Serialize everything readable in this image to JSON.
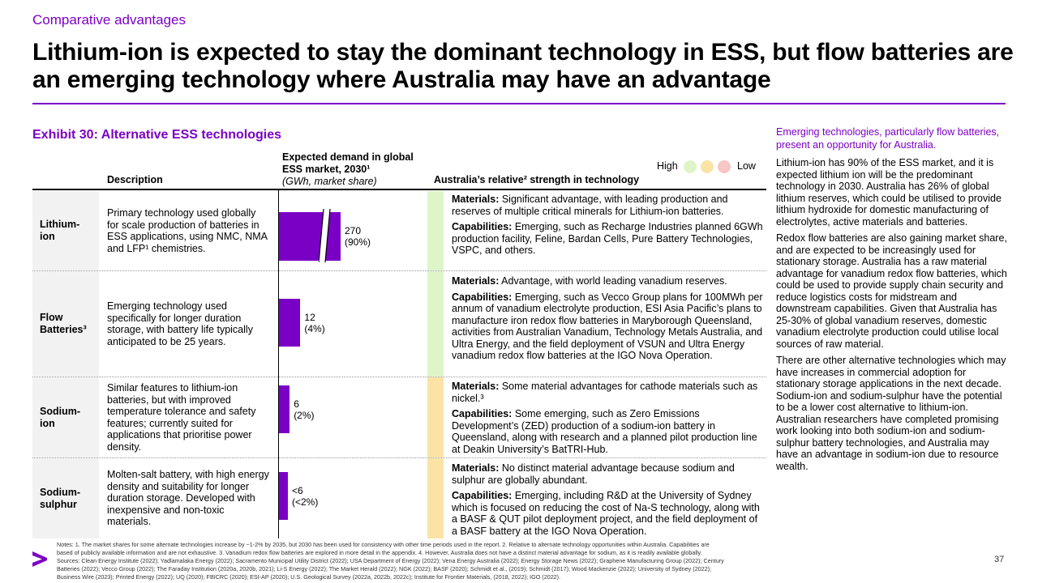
{
  "kicker": "Comparative advantages",
  "headline": "Lithium-ion is expected to stay the dominant technology in ESS, but flow batteries are an emerging technology where Australia may have an advantage",
  "exhibit": {
    "title": "Exhibit 30: Alternative ESS technologies",
    "col_description": "Description",
    "col_demand": "Expected demand in global ESS market, 2030¹",
    "col_demand_sub": "(GWh, market share)",
    "col_strength": "Australia’s relative² strength in technology",
    "legend_high": "High",
    "legend_low": "Low",
    "legend_colors": [
      "#dff5c8",
      "#fbe3a5",
      "#f7c6c6"
    ]
  },
  "rows": [
    {
      "label": "Lithium-ion",
      "description": "Primary technology used globally for scale production of batteries in ESS applications, using NMC, NMA and LFP¹ chemistries.",
      "demand_value": "270",
      "demand_share": "(90%)",
      "gwh": 270,
      "axis_break": true,
      "strength_color": "#dff5c8",
      "materials_label": "Materials:",
      "materials": "Significant advantage, with leading production and reserves of multiple critical minerals for Lithium-ion batteries.",
      "capabilities_label": "Capabilities:",
      "capabilities": "Emerging, such as Recharge Industries planned 6GWh production facility, Feline, Bardan Cells, Pure Battery Technologies, VSPC, and others."
    },
    {
      "label": "Flow Batteries³",
      "description": "Emerging technology used specifically for longer duration storage, with battery life typically anticipated to be 25 years.",
      "demand_value": "12",
      "demand_share": "(4%)",
      "gwh": 12,
      "axis_break": false,
      "strength_color": "#dff5c8",
      "materials_label": "Materials:",
      "materials": "Advantage, with world leading vanadium reserves.",
      "capabilities_label": "Capabilities:",
      "capabilities": "Emerging, such as Vecco Group plans for 100MWh per annum of vanadium electrolyte production, ESI Asia Pacific’s plans to manufacture iron redox flow batteries in Maryborough Queensland, activities from Australian Vanadium, Technology Metals Australia, and Ultra Energy, and the field deployment of VSUN and Ultra Energy vanadium redox flow batteries at the IGO Nova Operation."
    },
    {
      "label": "Sodium-ion",
      "description": "Similar features to lithium-ion batteries, but with improved temperature tolerance and safety features; currently suited for applications that prioritise power density.",
      "demand_value": "6",
      "demand_share": "(2%)",
      "gwh": 6,
      "axis_break": false,
      "strength_color": "#fbe3a5",
      "materials_label": "Materials:",
      "materials": "Some material advantages for cathode materials such as nickel.³",
      "capabilities_label": "Capabilities:",
      "capabilities": "Some emerging, such as Zero Emissions Development’s (ZED) production of a sodium-ion battery in Queensland, along with research and a planned pilot production line at Deakin University’s BatTRI-Hub."
    },
    {
      "label": "Sodium-sulphur",
      "description": "Molten-salt battery, with high energy density and suitability for longer duration storage. Developed with inexpensive and non-toxic materials.",
      "demand_value": "<6",
      "demand_share": "(<2%)",
      "gwh": 5,
      "axis_break": false,
      "strength_color": "#fbe3a5",
      "materials_label": "Materials:",
      "materials": "No distinct material advantage because sodium and sulphur are globally abundant.",
      "capabilities_label": "Capabilities:",
      "capabilities": "Emerging, including R&D at the University of Sydney which is focused on reducing the cost of Na-S technology, along with a BASF & QUT pilot deployment project, and the field deployment of a BASF battery at the IGO Nova Operation."
    }
  ],
  "sidebar": {
    "lead": "Emerging technologies, particularly flow batteries, present an opportunity for Australia.",
    "paragraphs": [
      "Lithium-ion has 90% of the ESS market, and it is expected lithium ion will be the predominant technology in 2030. Australia has 26% of global lithium reserves, which could be utilised to provide lithium hydroxide for domestic manufacturing of electrolytes, active materials and batteries.",
      "Redox flow batteries are also gaining market share, and are expected to be increasingly used for stationary storage. Australia has a raw material advantage for vanadium redox flow batteries, which could be used to provide supply chain security and reduce logistics costs for midstream and downstream capabilities. Given that Australia has 25-30% of global vanadium reserves, domestic vanadium electrolyte production could utilise local sources of raw material.",
      "There are other alternative technologies which may have increases in commercial adoption for stationary storage applications in the next decade. Sodium-ion and sodium-sulphur have the potential to be a lower cost alternative to lithium-ion. Australian researchers have completed promising work looking into both sodium-ion and sodium-sulphur battery technologies, and Australia may have an advantage in sodium-ion due to resource wealth."
    ]
  },
  "notes": [
    "Notes: 1. The market shares for some alternate technologies increase by ~1-2% by 2035, but 2030 has been used for consistency with other time periods used in the report. 2. Relative to alternate technology opportunities within Australia. Capabilities are",
    "based of publicly available information and are not exhaustive. 3. Vanadium redox flow batteries are explored in more detail in the appendix. 4. However, Australia does not have a distinct material advantage for sodium, as it is readily available globally.",
    "Sources: Clean Energy Institute (2022); Yadlamalaka Energy (2022); Sacramento Municipal Utility District (2022); USA Department of Energy (2022); Vena Energy Australia (2022); Energy Storage News (2022); Graphene Manufacturing Group (2022); Century",
    "Batteries (2022); Vecco Group (2022); The Faraday Institution (2020a, 2020b, 2021); Li-S Energy (2022); The Market Herald (2022); NGK (2022); BASF (2020); Schmidt et al., (2019); Schmidt (2017); Wood Mackenzie (2022); University of Sydney (2022);",
    "Business Wire (2023); Printed Energy (2022); UQ (2020); FBICRC (2020); ESI-AP (2020); U.S. Geological Survey (2022a, 2022b, 2022c); Institute for Frontier Materials, (2018, 2022); IGO (2022)."
  ],
  "page_number": "37",
  "colors": {
    "accent": "#7b00c6"
  }
}
